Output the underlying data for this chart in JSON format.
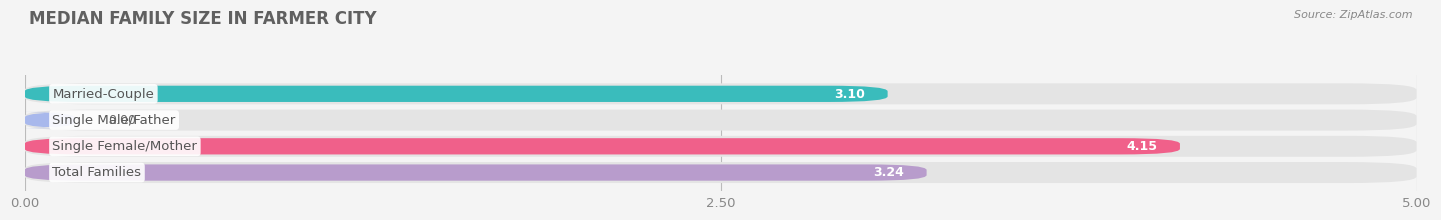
{
  "title": "MEDIAN FAMILY SIZE IN FARMER CITY",
  "source": "Source: ZipAtlas.com",
  "categories": [
    "Married-Couple",
    "Single Male/Father",
    "Single Female/Mother",
    "Total Families"
  ],
  "values": [
    3.1,
    0.0,
    4.15,
    3.24
  ],
  "bar_colors": [
    "#3abcbc",
    "#a8b8ec",
    "#f0608a",
    "#b89ccc"
  ],
  "background_color": "#f4f4f4",
  "bar_bg_color": "#e4e4e4",
  "xlim": [
    0,
    5.0
  ],
  "xticks": [
    0.0,
    2.5,
    5.0
  ],
  "xtick_labels": [
    "0.00",
    "2.50",
    "5.00"
  ],
  "label_fontsize": 9.5,
  "title_fontsize": 12,
  "value_fontsize": 9,
  "source_fontsize": 8
}
